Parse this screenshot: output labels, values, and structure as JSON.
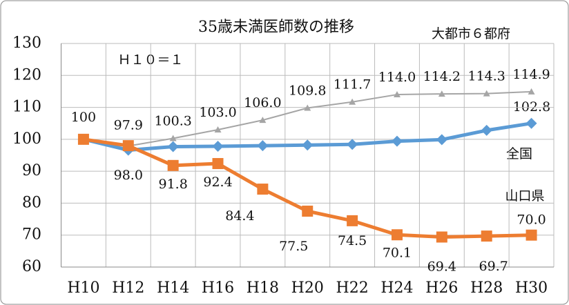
{
  "chart_data": {
    "type": "line",
    "title": "35歳未満医師数の推移",
    "categories": [
      "H10",
      "H12",
      "H14",
      "H16",
      "H18",
      "H20",
      "H22",
      "H24",
      "H26",
      "H28",
      "H30"
    ],
    "series": [
      {
        "name": "大都市６都府",
        "color": "#a5a5a5",
        "marker": "triangle",
        "values": [
          100,
          97.9,
          100.3,
          103.0,
          106.0,
          109.8,
          111.7,
          114.0,
          114.2,
          114.3,
          114.9
        ],
        "value_labels": [
          "100",
          "97.9",
          "100.3",
          "103.0",
          "106.0",
          "109.8",
          "111.7",
          "114.0",
          "114.2",
          "114.3",
          "114.9"
        ]
      },
      {
        "name": "全国",
        "color": "#5b9bd5",
        "marker": "diamond",
        "values": [
          100,
          96.6,
          97.7,
          97.8,
          98.0,
          98.2,
          98.4,
          99.4,
          99.9,
          102.8,
          105.0
        ]
      },
      {
        "name": "山口県",
        "color": "#ed7d31",
        "marker": "square",
        "values": [
          100,
          98.0,
          91.8,
          92.4,
          84.4,
          77.5,
          74.5,
          70.1,
          69.4,
          69.7,
          70.0
        ],
        "value_labels": [
          null,
          "98.0",
          "91.8",
          "92.4",
          "84.4",
          "77.5",
          "74.5",
          "70.1",
          "69.4",
          "69.7",
          "70.0"
        ]
      }
    ],
    "annotations": [
      "Ｈ１０＝１",
      "102.8"
    ],
    "ylim": [
      60,
      130
    ],
    "yticks": [
      60,
      70,
      80,
      90,
      100,
      110,
      120,
      130
    ],
    "grid": true
  }
}
